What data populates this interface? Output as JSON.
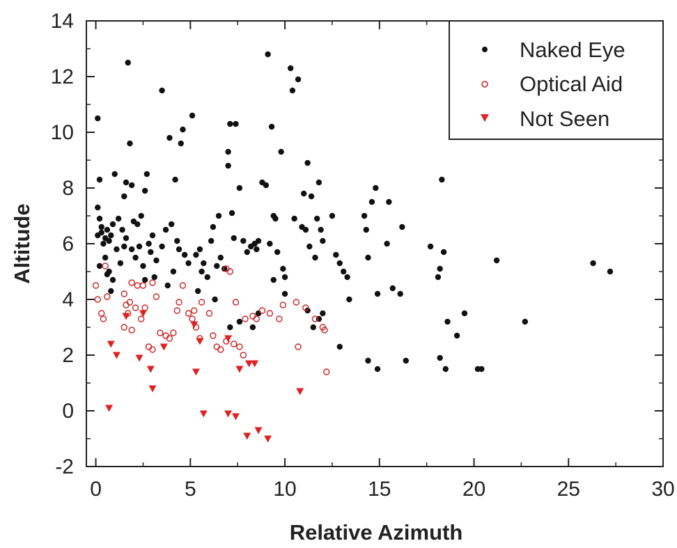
{
  "chart_data": {
    "type": "scatter",
    "title": "",
    "xlabel": "Relative Azimuth",
    "ylabel": "Altitude",
    "xlim": [
      -0.5,
      30
    ],
    "ylim": [
      -2,
      14
    ],
    "xticks": [
      0,
      5,
      10,
      15,
      20,
      25,
      30
    ],
    "yticks": [
      -2,
      0,
      2,
      4,
      6,
      8,
      10,
      12,
      14
    ],
    "grid": false,
    "legend_position": "top-right",
    "series": [
      {
        "name": "Naked Eye",
        "marker": "filled-circle",
        "color": "#111111",
        "points": [
          [
            0.1,
            10.5
          ],
          [
            0.2,
            8.3
          ],
          [
            0.1,
            7.3
          ],
          [
            0.2,
            6.9
          ],
          [
            0.3,
            6.6
          ],
          [
            0.1,
            6.3
          ],
          [
            0.4,
            6.0
          ],
          [
            0.6,
            6.5
          ],
          [
            0.8,
            6.3
          ],
          [
            0.5,
            6.2
          ],
          [
            0.3,
            6.4
          ],
          [
            0.7,
            6.1
          ],
          [
            0.9,
            6.7
          ],
          [
            0.2,
            5.2
          ],
          [
            0.5,
            5.5
          ],
          [
            0.7,
            5.0
          ],
          [
            0.9,
            4.7
          ],
          [
            0.8,
            4.3
          ],
          [
            1.0,
            8.5
          ],
          [
            1.2,
            6.9
          ],
          [
            1.4,
            6.5
          ],
          [
            1.6,
            6.2
          ],
          [
            1.1,
            5.8
          ],
          [
            1.3,
            5.3
          ],
          [
            1.5,
            5.9
          ],
          [
            1.7,
            12.5
          ],
          [
            1.6,
            8.2
          ],
          [
            1.9,
            8.1
          ],
          [
            1.8,
            9.6
          ],
          [
            1.5,
            7.7
          ],
          [
            2.0,
            6.8
          ],
          [
            2.2,
            6.7
          ],
          [
            2.4,
            7.0
          ],
          [
            1.9,
            5.8
          ],
          [
            2.1,
            5.5
          ],
          [
            2.3,
            5.9
          ],
          [
            2.5,
            5.2
          ],
          [
            2.7,
            8.5
          ],
          [
            2.6,
            7.9
          ],
          [
            2.8,
            6.0
          ],
          [
            3.0,
            6.3
          ],
          [
            2.9,
            5.7
          ],
          [
            3.2,
            5.4
          ],
          [
            3.1,
            4.8
          ],
          [
            3.5,
            11.5
          ],
          [
            3.5,
            5.9
          ],
          [
            3.7,
            6.5
          ],
          [
            3.9,
            9.8
          ],
          [
            4.0,
            6.7
          ],
          [
            4.2,
            8.3
          ],
          [
            4.3,
            6.1
          ],
          [
            4.4,
            5.8
          ],
          [
            4.5,
            9.6
          ],
          [
            4.6,
            10.1
          ],
          [
            4.7,
            5.6
          ],
          [
            4.9,
            5.3
          ],
          [
            5.1,
            10.6
          ],
          [
            5.3,
            5.6
          ],
          [
            5.5,
            5.8
          ],
          [
            5.7,
            5.3
          ],
          [
            5.6,
            5.0
          ],
          [
            5.9,
            4.8
          ],
          [
            6.1,
            6.1
          ],
          [
            6.2,
            6.6
          ],
          [
            6.4,
            5.2
          ],
          [
            6.5,
            7.0
          ],
          [
            6.6,
            5.5
          ],
          [
            6.8,
            5.1
          ],
          [
            7.0,
            9.3
          ],
          [
            7.1,
            10.3
          ],
          [
            7.0,
            8.8
          ],
          [
            7.2,
            7.1
          ],
          [
            7.4,
            10.3
          ],
          [
            7.3,
            6.2
          ],
          [
            7.6,
            8.0
          ],
          [
            7.8,
            6.1
          ],
          [
            8.0,
            5.7
          ],
          [
            8.2,
            5.9
          ],
          [
            8.4,
            6.0
          ],
          [
            8.5,
            5.8
          ],
          [
            8.6,
            6.1
          ],
          [
            8.8,
            8.2
          ],
          [
            9.0,
            8.1
          ],
          [
            9.1,
            12.8
          ],
          [
            9.3,
            10.2
          ],
          [
            9.4,
            7.0
          ],
          [
            9.5,
            6.9
          ],
          [
            9.2,
            6.0
          ],
          [
            9.6,
            5.7
          ],
          [
            9.8,
            9.3
          ],
          [
            9.9,
            5.1
          ],
          [
            10.0,
            4.8
          ],
          [
            10.3,
            12.3
          ],
          [
            10.4,
            11.5
          ],
          [
            10.7,
            11.9
          ],
          [
            10.5,
            6.9
          ],
          [
            10.9,
            6.6
          ],
          [
            11.0,
            7.8
          ],
          [
            11.2,
            8.9
          ],
          [
            11.4,
            7.7
          ],
          [
            11.1,
            6.5
          ],
          [
            11.3,
            5.9
          ],
          [
            11.6,
            5.5
          ],
          [
            11.8,
            8.2
          ],
          [
            11.7,
            6.9
          ],
          [
            11.9,
            6.5
          ],
          [
            12.0,
            6.1
          ],
          [
            12.5,
            7.0
          ],
          [
            12.7,
            5.6
          ],
          [
            12.9,
            5.3
          ],
          [
            13.1,
            5.0
          ],
          [
            13.3,
            4.8
          ],
          [
            13.4,
            4.0
          ],
          [
            11.5,
            3.0
          ],
          [
            11.8,
            3.3
          ],
          [
            11.2,
            3.6
          ],
          [
            12.0,
            3.5
          ],
          [
            12.9,
            2.3
          ],
          [
            14.2,
            7.0
          ],
          [
            14.3,
            6.5
          ],
          [
            14.6,
            7.5
          ],
          [
            14.8,
            8.0
          ],
          [
            14.4,
            5.5
          ],
          [
            14.9,
            4.2
          ],
          [
            15.5,
            7.5
          ],
          [
            15.4,
            6.0
          ],
          [
            15.7,
            4.4
          ],
          [
            16.2,
            6.6
          ],
          [
            16.1,
            4.2
          ],
          [
            16.4,
            1.8
          ],
          [
            17.7,
            5.9
          ],
          [
            18.1,
            4.8
          ],
          [
            18.3,
            8.3
          ],
          [
            18.4,
            5.7
          ],
          [
            18.2,
            5.1
          ],
          [
            18.6,
            3.2
          ],
          [
            19.1,
            2.7
          ],
          [
            19.5,
            3.5
          ],
          [
            18.2,
            1.9
          ],
          [
            18.5,
            1.5
          ],
          [
            21.2,
            5.4
          ],
          [
            20.2,
            1.5
          ],
          [
            20.4,
            1.5
          ],
          [
            22.7,
            3.2
          ],
          [
            26.3,
            5.3
          ],
          [
            27.2,
            5.0
          ],
          [
            14.4,
            1.8
          ],
          [
            14.9,
            1.5
          ],
          [
            5.4,
            4.3
          ],
          [
            3.8,
            4.5
          ],
          [
            2.6,
            4.7
          ],
          [
            6.3,
            4.0
          ],
          [
            7.1,
            3.0
          ],
          [
            7.6,
            3.2
          ],
          [
            8.3,
            3.0
          ],
          [
            8.6,
            3.5
          ],
          [
            9.4,
            4.7
          ],
          [
            10.0,
            4.2
          ],
          [
            4.1,
            5.0
          ],
          [
            0.6,
            4.9
          ]
        ]
      },
      {
        "name": "Optical Aid",
        "marker": "open-circle",
        "color": "#cc2222",
        "points": [
          [
            0.0,
            4.5
          ],
          [
            0.1,
            4.0
          ],
          [
            0.3,
            3.5
          ],
          [
            0.4,
            3.3
          ],
          [
            0.5,
            5.2
          ],
          [
            0.6,
            4.1
          ],
          [
            1.5,
            4.2
          ],
          [
            1.6,
            3.8
          ],
          [
            1.7,
            3.5
          ],
          [
            1.8,
            3.9
          ],
          [
            1.5,
            3.0
          ],
          [
            1.9,
            2.9
          ],
          [
            2.1,
            3.7
          ],
          [
            1.9,
            4.6
          ],
          [
            2.2,
            4.5
          ],
          [
            2.5,
            4.5
          ],
          [
            2.6,
            3.7
          ],
          [
            2.4,
            3.3
          ],
          [
            2.8,
            2.3
          ],
          [
            3.0,
            2.2
          ],
          [
            3.0,
            4.6
          ],
          [
            3.2,
            4.1
          ],
          [
            3.4,
            2.8
          ],
          [
            3.7,
            2.7
          ],
          [
            3.9,
            2.6
          ],
          [
            4.1,
            2.8
          ],
          [
            4.3,
            3.6
          ],
          [
            4.4,
            3.9
          ],
          [
            4.6,
            4.5
          ],
          [
            4.9,
            3.5
          ],
          [
            5.1,
            3.3
          ],
          [
            5.3,
            3.0
          ],
          [
            5.5,
            2.6
          ],
          [
            5.6,
            3.9
          ],
          [
            6.0,
            3.5
          ],
          [
            6.2,
            2.7
          ],
          [
            6.4,
            2.3
          ],
          [
            6.6,
            2.2
          ],
          [
            6.9,
            2.5
          ],
          [
            7.1,
            5.0
          ],
          [
            7.4,
            3.9
          ],
          [
            7.6,
            2.3
          ],
          [
            7.8,
            2.0
          ],
          [
            7.9,
            3.3
          ],
          [
            8.3,
            3.4
          ],
          [
            8.5,
            3.3
          ],
          [
            8.8,
            3.6
          ],
          [
            9.2,
            3.5
          ],
          [
            9.7,
            3.3
          ],
          [
            9.9,
            3.8
          ],
          [
            10.6,
            3.9
          ],
          [
            10.7,
            2.3
          ],
          [
            11.1,
            3.7
          ],
          [
            12.0,
            3.0
          ],
          [
            12.1,
            2.9
          ],
          [
            11.6,
            3.3
          ],
          [
            12.2,
            1.4
          ],
          [
            5.2,
            3.6
          ],
          [
            6.9,
            5.1
          ],
          [
            7.3,
            2.4
          ]
        ]
      },
      {
        "name": "Not Seen",
        "marker": "filled-triangle-down",
        "color": "#dd2222",
        "points": [
          [
            0.7,
            0.1
          ],
          [
            0.8,
            2.4
          ],
          [
            1.1,
            2.0
          ],
          [
            1.6,
            3.4
          ],
          [
            2.3,
            1.9
          ],
          [
            2.5,
            3.5
          ],
          [
            2.9,
            1.5
          ],
          [
            3.0,
            0.8
          ],
          [
            3.6,
            2.3
          ],
          [
            5.2,
            3.1
          ],
          [
            5.3,
            1.4
          ],
          [
            5.5,
            2.5
          ],
          [
            5.7,
            -0.1
          ],
          [
            7.0,
            -0.1
          ],
          [
            7.0,
            2.6
          ],
          [
            7.4,
            -0.2
          ],
          [
            7.6,
            1.5
          ],
          [
            8.0,
            -0.9
          ],
          [
            8.1,
            1.7
          ],
          [
            8.4,
            1.7
          ],
          [
            8.6,
            -0.7
          ],
          [
            9.1,
            -1.0
          ],
          [
            10.8,
            0.7
          ]
        ]
      }
    ]
  }
}
